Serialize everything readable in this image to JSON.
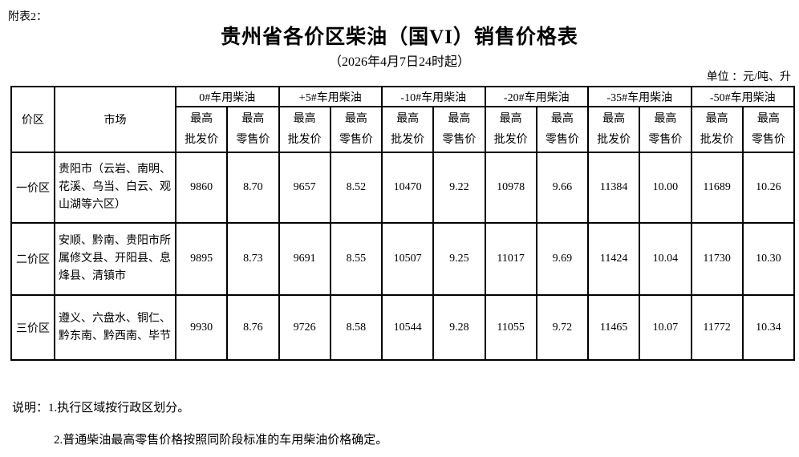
{
  "page": {
    "attachment_label": "附表2：",
    "title": "贵州省各价区柴油（国VI）销售价格表",
    "subtitle": "（2026年4月7日24时起）",
    "unit_label": "单位 ：元/吨、升"
  },
  "table": {
    "zone_header": "价区",
    "market_header": "市场",
    "fuel_groups": [
      "0#车用柴油",
      "+5#车用柴油",
      "-10#车用柴油",
      "-20#车用柴油",
      "-35#车用柴油",
      "-50#车用柴油"
    ],
    "sub_header": {
      "top": "最高",
      "wholesale": "批发价",
      "retail": "零售价"
    },
    "rows": [
      {
        "zone": "一价区",
        "market": "贵阳市（云岩、南明、花溪、乌当、白云、观山湖等六区）",
        "values": [
          "9860",
          "8.70",
          "9657",
          "8.52",
          "10470",
          "9.22",
          "10978",
          "9.66",
          "11384",
          "10.00",
          "11689",
          "10.26"
        ]
      },
      {
        "zone": "二价区",
        "market": "安顺、黔南、贵阳市所属修文县、开阳县、息烽县、清镇市",
        "values": [
          "9895",
          "8.73",
          "9691",
          "8.55",
          "10507",
          "9.25",
          "11017",
          "9.69",
          "11424",
          "10.04",
          "11730",
          "10.30"
        ]
      },
      {
        "zone": "三价区",
        "market": "遵义、六盘水、铜仁、黔东南、黔西南、毕节",
        "values": [
          "9930",
          "8.76",
          "9726",
          "8.58",
          "10544",
          "9.28",
          "11055",
          "9.72",
          "11465",
          "10.07",
          "11772",
          "10.34"
        ]
      }
    ]
  },
  "notes": {
    "line1": "说明：1.执行区域按行政区划分。",
    "line2": "2.普通柴油最高零售价格按照同阶段标准的车用柴油价格确定。"
  },
  "colors": {
    "text": "#000000",
    "background": "#ffffff",
    "border": "#000000"
  }
}
